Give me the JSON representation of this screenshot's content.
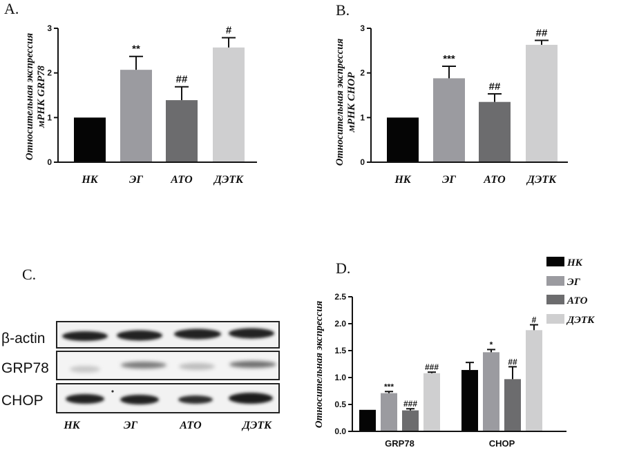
{
  "colors": {
    "nk": "#050505",
    "eg": "#9b9ba0",
    "ato": "#6c6c6e",
    "detk": "#cfcfd0"
  },
  "chart_data": [
    {
      "panel": "A.",
      "type": "bar",
      "ylabel_line1": "Относительная экспрессия",
      "ylabel_line2": "мРНК GRP78",
      "categories": [
        "НК",
        "ЭГ",
        "АТО",
        "ДЭТК"
      ],
      "values": [
        1.0,
        2.07,
        1.39,
        2.57
      ],
      "errors": [
        0,
        0.3,
        0.3,
        0.22
      ],
      "annotations": [
        "",
        "**",
        "##",
        "#"
      ],
      "ylim": [
        0,
        3
      ],
      "yticks": [
        "0",
        "1",
        "2",
        "3"
      ]
    },
    {
      "panel": "B.",
      "type": "bar",
      "ylabel_line1": "Относительная экспрессия",
      "ylabel_line2": "мРНК CHOP",
      "categories": [
        "НК",
        "ЭГ",
        "АТО",
        "ДЭТК"
      ],
      "values": [
        1.0,
        1.88,
        1.35,
        2.63
      ],
      "errors": [
        0,
        0.27,
        0.18,
        0.1
      ],
      "annotations": [
        "",
        "***",
        "##",
        "##"
      ],
      "ylim": [
        0,
        3
      ],
      "yticks": [
        "0",
        "1",
        "2",
        "3"
      ]
    },
    {
      "panel": "D.",
      "type": "bar",
      "ylabel": "Относительная экспрессия",
      "categories": [
        "GRP78",
        "CHOP"
      ],
      "series": [
        {
          "name": "НК",
          "values": [
            0.4,
            1.14
          ],
          "errors": [
            0,
            0.14
          ],
          "annotations": [
            "",
            ""
          ]
        },
        {
          "name": "ЭГ",
          "values": [
            0.71,
            1.47
          ],
          "errors": [
            0.03,
            0.05
          ],
          "annotations": [
            "***",
            "*"
          ]
        },
        {
          "name": "АТО",
          "values": [
            0.39,
            0.97
          ],
          "errors": [
            0.03,
            0.23
          ],
          "annotations": [
            "###",
            "##"
          ]
        },
        {
          "name": "ДЭТК",
          "values": [
            1.08,
            1.88
          ],
          "errors": [
            0.02,
            0.1
          ],
          "annotations": [
            "###",
            "#"
          ]
        }
      ],
      "ylim": [
        0,
        2.5
      ],
      "yticks": [
        "0.0",
        "0.5",
        "1.0",
        "1.5",
        "2.0",
        "2.5"
      ],
      "legend_position": "top-right"
    }
  ],
  "blot": {
    "panel": "C.",
    "rows": [
      "β-actin",
      "GRP78",
      "CHOP"
    ],
    "lanes": [
      "НК",
      "ЭГ",
      "АТО",
      "ДЭТК"
    ]
  }
}
